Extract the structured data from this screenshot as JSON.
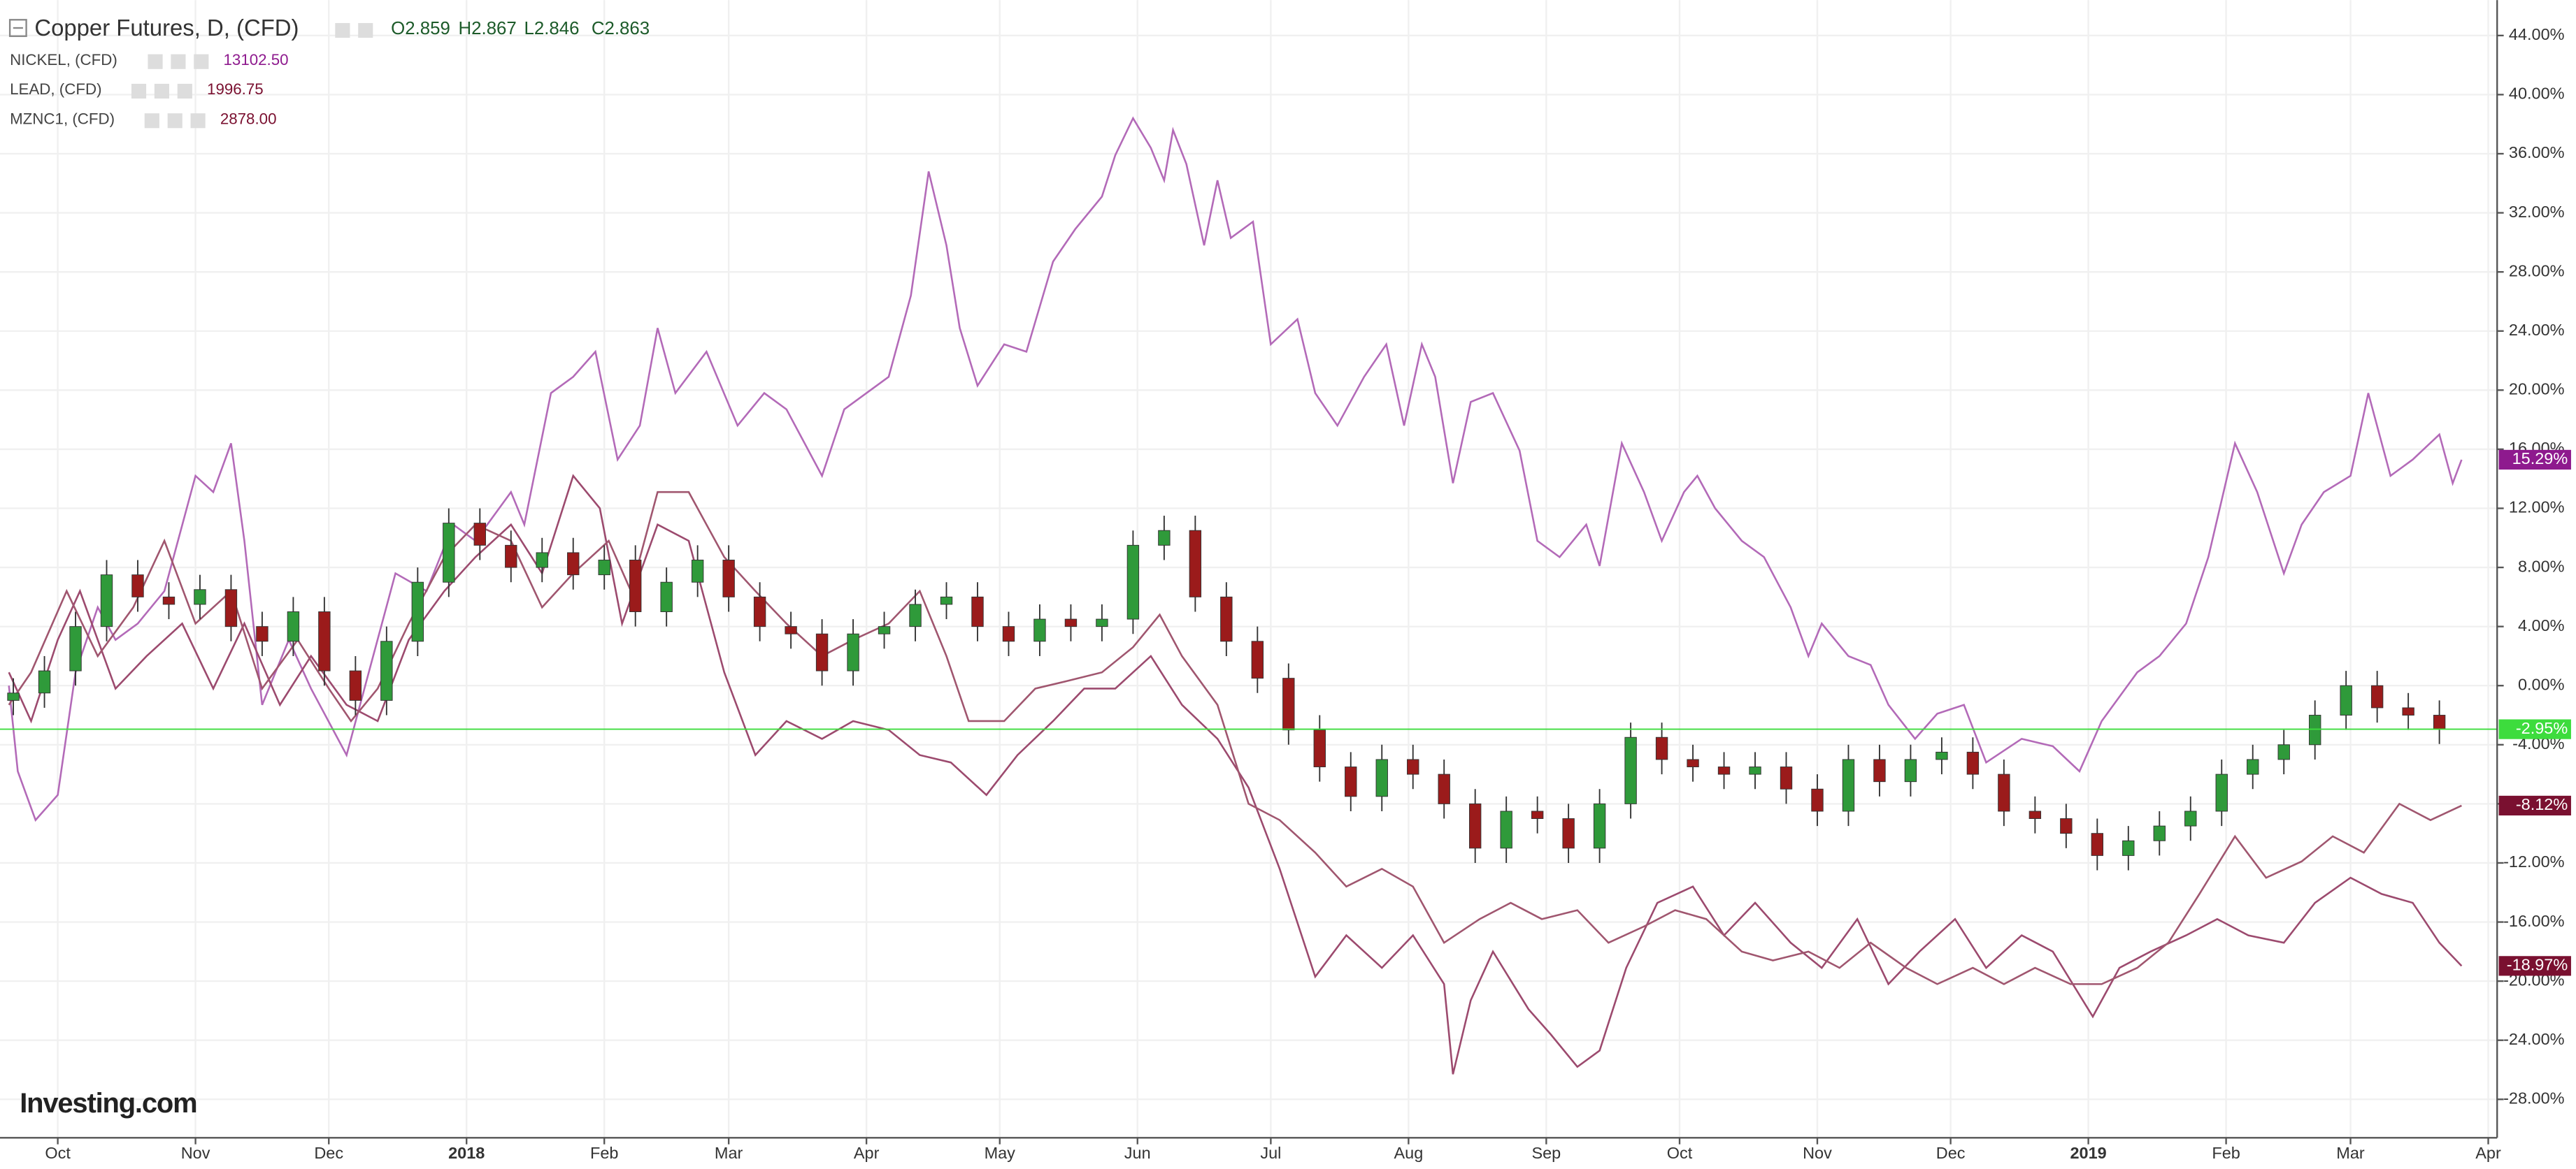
{
  "chart_data": {
    "type": "candlestick",
    "title": "Copper Futures, D, (CFD)",
    "ohlc_labels": [
      "O2.859",
      "H2.867",
      "L2.846",
      "C2.863"
    ],
    "watermark": "Investing.com",
    "grid": true,
    "xlim": [
      -9,
      553
    ],
    "ylim": [
      -30.6,
      46.4
    ],
    "xticks": [
      {
        "value": 4,
        "label": "Oct"
      },
      {
        "value": 35,
        "label": "Nov"
      },
      {
        "value": 65,
        "label": "Dec"
      },
      {
        "value": 96,
        "label": "2018"
      },
      {
        "value": 127,
        "label": "Feb"
      },
      {
        "value": 155,
        "label": "Mar"
      },
      {
        "value": 186,
        "label": "Apr"
      },
      {
        "value": 216,
        "label": "May"
      },
      {
        "value": 247,
        "label": "Jun"
      },
      {
        "value": 277,
        "label": "Jul"
      },
      {
        "value": 308,
        "label": "Aug"
      },
      {
        "value": 339,
        "label": "Sep"
      },
      {
        "value": 369,
        "label": "Oct"
      },
      {
        "value": 400,
        "label": "Nov"
      },
      {
        "value": 430,
        "label": "Dec"
      },
      {
        "value": 461,
        "label": "2019"
      },
      {
        "value": 492,
        "label": "Feb"
      },
      {
        "value": 520,
        "label": "Mar"
      },
      {
        "value": 551,
        "label": "Apr"
      }
    ],
    "yticks": [
      {
        "value": -28,
        "label": "-28.00%"
      },
      {
        "value": -24,
        "label": "-24.00%"
      },
      {
        "value": -20,
        "label": "-20.00%"
      },
      {
        "value": -16,
        "label": "-16.00%"
      },
      {
        "value": -12,
        "label": "-12.00%"
      },
      {
        "value": -8,
        "label": "-8.00%"
      },
      {
        "value": -4,
        "label": "-4.00%"
      },
      {
        "value": 0,
        "label": "0.00%"
      },
      {
        "value": 4,
        "label": "4.00%"
      },
      {
        "value": 8,
        "label": "8.00%"
      },
      {
        "value": 12,
        "label": "12.00%"
      },
      {
        "value": 16,
        "label": "16.00%"
      },
      {
        "value": 20,
        "label": "20.00%"
      },
      {
        "value": 24,
        "label": "24.00%"
      },
      {
        "value": 28,
        "label": "28.00%"
      },
      {
        "value": 32,
        "label": "32.00%"
      },
      {
        "value": 36,
        "label": "36.00%"
      },
      {
        "value": 40,
        "label": "40.00%"
      },
      {
        "value": 44,
        "label": "44.00%"
      }
    ],
    "candles": {
      "up_color": "#2f9a3a",
      "down_color": "#9b1b1b",
      "last_color": "#3ddc3d",
      "last_label": "-2.95%",
      "x": [
        -6,
        1,
        8,
        15,
        22,
        29,
        36,
        43,
        50,
        57,
        64,
        71,
        78,
        85,
        92,
        99,
        106,
        113,
        120,
        127,
        134,
        141,
        148,
        155,
        162,
        169,
        176,
        183,
        190,
        197,
        204,
        211,
        218,
        225,
        232,
        239,
        246,
        253,
        260,
        267,
        274,
        281,
        288,
        295,
        302,
        309,
        316,
        323,
        330,
        337,
        344,
        351,
        358,
        365,
        372,
        379,
        386,
        393,
        400,
        407,
        414,
        421,
        428,
        435,
        442,
        449,
        456,
        463,
        470,
        477,
        484,
        491,
        498,
        505,
        512,
        519,
        526,
        533,
        540
      ],
      "open": [
        -1.0,
        -0.5,
        1.0,
        4.0,
        7.5,
        6.0,
        5.5,
        6.5,
        4.0,
        3.0,
        5.0,
        1.0,
        -1.0,
        3.0,
        7.0,
        11.0,
        9.5,
        8.0,
        9.0,
        7.5,
        8.5,
        5.0,
        7.0,
        8.5,
        6.0,
        4.0,
        3.5,
        1.0,
        3.5,
        4.0,
        5.5,
        6.0,
        4.0,
        3.0,
        4.5,
        4.0,
        4.5,
        9.5,
        10.5,
        6.0,
        3.0,
        0.5,
        -3.0,
        -5.5,
        -7.5,
        -5.0,
        -6.0,
        -8.0,
        -11.0,
        -8.5,
        -9.0,
        -11.0,
        -8.0,
        -3.5,
        -5.0,
        -5.5,
        -6.0,
        -5.5,
        -7.0,
        -8.5,
        -5.0,
        -6.5,
        -5.0,
        -4.5,
        -6.0,
        -8.5,
        -9.0,
        -10.0,
        -11.5,
        -10.5,
        -9.5,
        -8.5,
        -6.0,
        -5.0,
        -4.0,
        -2.0,
        0.0,
        -1.5,
        -2.0
      ],
      "high": [
        0.5,
        2,
        5,
        8.5,
        8.5,
        7,
        7.5,
        7.5,
        5,
        6,
        6,
        2,
        4,
        8,
        12,
        12,
        10.5,
        10,
        10,
        9.5,
        9.5,
        8,
        9.5,
        9.5,
        7,
        5,
        4.5,
        4.5,
        5,
        6.5,
        7,
        7,
        5,
        5.5,
        5.5,
        5.5,
        10.5,
        11.5,
        11.5,
        7,
        4,
        1.5,
        -2,
        -4.5,
        -4,
        -4,
        -5,
        -7,
        -7.5,
        -7.5,
        -8,
        -7,
        -2.5,
        -2.5,
        -4,
        -4.5,
        -4.5,
        -4.5,
        -6,
        -4,
        -4,
        -4,
        -3.5,
        -3.5,
        -5,
        -7.5,
        -8,
        -9,
        -9.5,
        -8.5,
        -7.5,
        -5,
        -4,
        -3,
        -1,
        1,
        1,
        -0.5,
        -1
      ],
      "low": [
        -2,
        -1.5,
        0,
        3,
        5,
        4.5,
        4.5,
        3,
        2,
        2,
        0,
        -2,
        -2,
        2,
        6,
        8.5,
        7,
        7,
        6.5,
        6.5,
        4,
        4,
        6,
        5,
        3,
        2.5,
        0,
        0,
        2.5,
        3,
        4.5,
        3,
        2,
        2,
        3,
        3,
        3.5,
        8.5,
        5,
        2,
        -0.5,
        -4,
        -6.5,
        -8.5,
        -8.5,
        -7,
        -9,
        -12,
        -12,
        -10,
        -12,
        -12,
        -9,
        -6,
        -6.5,
        -7,
        -7,
        -8,
        -9.5,
        -9.5,
        -7.5,
        -7.5,
        -6,
        -7,
        -9.5,
        -10,
        -11,
        -12.5,
        -12.5,
        -11.5,
        -10.5,
        -9.5,
        -7,
        -6,
        -5,
        -3,
        -2.5,
        -3,
        -3.95
      ],
      "close": [
        -0.5,
        1.0,
        4.0,
        7.5,
        6.0,
        5.5,
        6.5,
        4.0,
        3.0,
        5.0,
        1.0,
        -1.0,
        3.0,
        7.0,
        11.0,
        9.5,
        8.0,
        9.0,
        7.5,
        8.5,
        5.0,
        7.0,
        8.5,
        6.0,
        4.0,
        3.5,
        1.0,
        3.5,
        4.0,
        5.5,
        6.0,
        4.0,
        3.0,
        4.5,
        4.0,
        4.5,
        9.5,
        10.5,
        6.0,
        3.0,
        0.5,
        -3.0,
        -5.5,
        -7.5,
        -5.0,
        -6.0,
        -8.0,
        -11.0,
        -8.5,
        -9.0,
        -11.0,
        -8.0,
        -3.5,
        -5.0,
        -5.5,
        -6.0,
        -5.5,
        -7.0,
        -8.5,
        -5.0,
        -6.5,
        -5.0,
        -4.5,
        -6.0,
        -8.5,
        -9.0,
        -10.0,
        -11.5,
        -10.5,
        -9.5,
        -8.5,
        -6.0,
        -5.0,
        -4.0,
        -2.0,
        0.0,
        -1.5,
        -2.0,
        -2.95
      ]
    },
    "series": [
      {
        "name": "NICKEL, (CFD)",
        "price": "13102.50",
        "color": "#b36ab8",
        "label_color": "#8e1a8e",
        "last_label": "15.29%",
        "x": [
          -7,
          -5,
          -1,
          4,
          8,
          13,
          17,
          22,
          28,
          35,
          39,
          43,
          46,
          50,
          56,
          61,
          69,
          74,
          80,
          87,
          93,
          98,
          106,
          109,
          115,
          120,
          125,
          130,
          135,
          139,
          143,
          150,
          157,
          163,
          168,
          176,
          181,
          191,
          196,
          200,
          204,
          207,
          211,
          217,
          222,
          228,
          233,
          239,
          242,
          246,
          250,
          253,
          255,
          258,
          262,
          265,
          268,
          273,
          277,
          283,
          287,
          292,
          298,
          303,
          307,
          311,
          314,
          318,
          322,
          327,
          333,
          337,
          342,
          348,
          351,
          356,
          361,
          365,
          370,
          373,
          377,
          383,
          388,
          394,
          398,
          401,
          407,
          412,
          416,
          422,
          427,
          433,
          438,
          446,
          453,
          459,
          464,
          472,
          477,
          483,
          488,
          494,
          499,
          505,
          509,
          514,
          520,
          524,
          529,
          534,
          540,
          543,
          545
        ],
        "values": [
          0,
          -5.8,
          -9.1,
          -7.4,
          0.9,
          5.3,
          3.1,
          4.2,
          6.4,
          14.2,
          13.1,
          16.4,
          9.8,
          -1.3,
          3.1,
          -0.2,
          -4.7,
          0.9,
          7.6,
          6.4,
          10.9,
          9.8,
          13.1,
          10.9,
          19.8,
          20.9,
          22.6,
          15.3,
          17.6,
          24.2,
          19.8,
          22.6,
          17.6,
          19.8,
          18.7,
          14.2,
          18.7,
          20.9,
          26.4,
          34.8,
          29.8,
          24.2,
          20.3,
          23.1,
          22.6,
          28.7,
          30.9,
          33.1,
          35.9,
          38.4,
          36.4,
          34.2,
          37.6,
          35.3,
          29.8,
          34.2,
          30.3,
          31.4,
          23.1,
          24.8,
          19.8,
          17.6,
          20.9,
          23.1,
          17.6,
          23.1,
          20.9,
          13.7,
          19.2,
          19.8,
          15.9,
          9.8,
          8.7,
          10.9,
          8.1,
          16.4,
          13.1,
          9.8,
          13.1,
          14.2,
          12,
          9.8,
          8.7,
          5.3,
          2,
          4.2,
          2,
          1.4,
          -1.3,
          -3.6,
          -1.9,
          -1.3,
          -5.2,
          -3.6,
          -4.1,
          -5.8,
          -2.4,
          0.9,
          2,
          4.2,
          8.7,
          16.4,
          13.1,
          7.6,
          10.9,
          13.1,
          14.2,
          19.8,
          14.2,
          15.3,
          17,
          13.7,
          15.29
        ]
      },
      {
        "name": "LEAD, (CFD)",
        "price": "1996.75",
        "color": "#9c4a6e",
        "label_color": "#7a1030",
        "last_label": "-18.97%",
        "x": [
          -7,
          -2,
          4,
          9,
          17,
          24,
          32,
          39,
          46,
          54,
          61,
          69,
          76,
          83,
          91,
          98,
          106,
          113,
          120,
          126,
          131,
          139,
          146,
          154,
          161,
          168,
          176,
          183,
          191,
          198,
          205,
          213,
          220,
          228,
          235,
          242,
          250,
          257,
          265,
          272,
          279,
          287,
          294,
          302,
          309,
          316,
          318,
          322,
          327,
          335,
          340,
          346,
          351,
          357,
          364,
          372,
          379,
          386,
          394,
          401,
          409,
          416,
          423,
          431,
          438,
          446,
          453,
          462,
          468,
          475,
          483,
          490,
          497,
          505,
          512,
          520,
          527,
          534,
          540,
          545
        ],
        "values": [
          0.9,
          -2.4,
          3.1,
          6.4,
          -0.2,
          2,
          4.2,
          -0.2,
          4.2,
          -1.3,
          2,
          -1.3,
          -2.4,
          3.1,
          6.4,
          8.7,
          10.9,
          7.6,
          14.2,
          12,
          4.2,
          10.9,
          9.8,
          0.9,
          -4.7,
          -2.4,
          -3.6,
          -2.4,
          -3,
          -4.7,
          -5.2,
          -7.4,
          -4.7,
          -2.4,
          -0.2,
          -0.2,
          2,
          -1.3,
          -3.6,
          -6.9,
          -12.4,
          -19.7,
          -16.9,
          -19.1,
          -16.9,
          -20.2,
          -26.3,
          -21.3,
          -18,
          -21.9,
          -23.6,
          -25.8,
          -24.7,
          -19.1,
          -14.7,
          -13.6,
          -16.9,
          -14.7,
          -17.4,
          -19.1,
          -15.8,
          -20.2,
          -18,
          -15.8,
          -19.1,
          -16.9,
          -18,
          -22.4,
          -19.1,
          -18,
          -16.9,
          -15.8,
          -16.9,
          -17.4,
          -14.7,
          -13,
          -14.1,
          -14.7,
          -17.4,
          -18.97
        ]
      },
      {
        "name": "MZNC1, (CFD)",
        "price": "2878.00",
        "color": "#a0566f",
        "label_color": "#7a1030",
        "last_label": "-8.12%",
        "x": [
          -7,
          -2,
          6,
          13,
          21,
          28,
          35,
          43,
          50,
          58,
          65,
          70,
          76,
          83,
          91,
          98,
          106,
          113,
          120,
          128,
          133,
          139,
          146,
          154,
          161,
          168,
          176,
          183,
          191,
          198,
          204,
          209,
          217,
          224,
          231,
          239,
          246,
          252,
          257,
          265,
          272,
          279,
          287,
          294,
          302,
          309,
          316,
          324,
          331,
          338,
          346,
          353,
          361,
          368,
          375,
          383,
          390,
          398,
          405,
          412,
          420,
          427,
          435,
          442,
          449,
          457,
          464,
          472,
          479,
          486,
          494,
          501,
          509,
          516,
          523,
          531,
          538,
          545
        ],
        "values": [
          -1.3,
          0.9,
          6.4,
          2,
          5.3,
          9.8,
          4.2,
          6.4,
          -0.2,
          3.1,
          -0.2,
          -2.4,
          -0.2,
          4.2,
          8.7,
          10.9,
          9.8,
          5.3,
          7.6,
          9.8,
          6.4,
          13.1,
          13.1,
          8.7,
          6.4,
          4.2,
          2,
          3.1,
          4.2,
          6.4,
          2,
          -2.4,
          -2.4,
          -0.2,
          0.3,
          0.9,
          2.6,
          4.8,
          2,
          -1.3,
          -8,
          -9.1,
          -11.3,
          -13.6,
          -12.4,
          -13.6,
          -17.4,
          -15.8,
          -14.7,
          -15.8,
          -15.2,
          -17.4,
          -16.3,
          -15.2,
          -15.8,
          -18,
          -18.6,
          -18,
          -19.1,
          -17.4,
          -19.1,
          -20.2,
          -19.1,
          -20.2,
          -19.1,
          -20.2,
          -20.2,
          -19.1,
          -17.4,
          -14.1,
          -10.2,
          -13,
          -11.9,
          -10.2,
          -11.3,
          -8,
          -9.1,
          -8.12
        ]
      }
    ]
  }
}
